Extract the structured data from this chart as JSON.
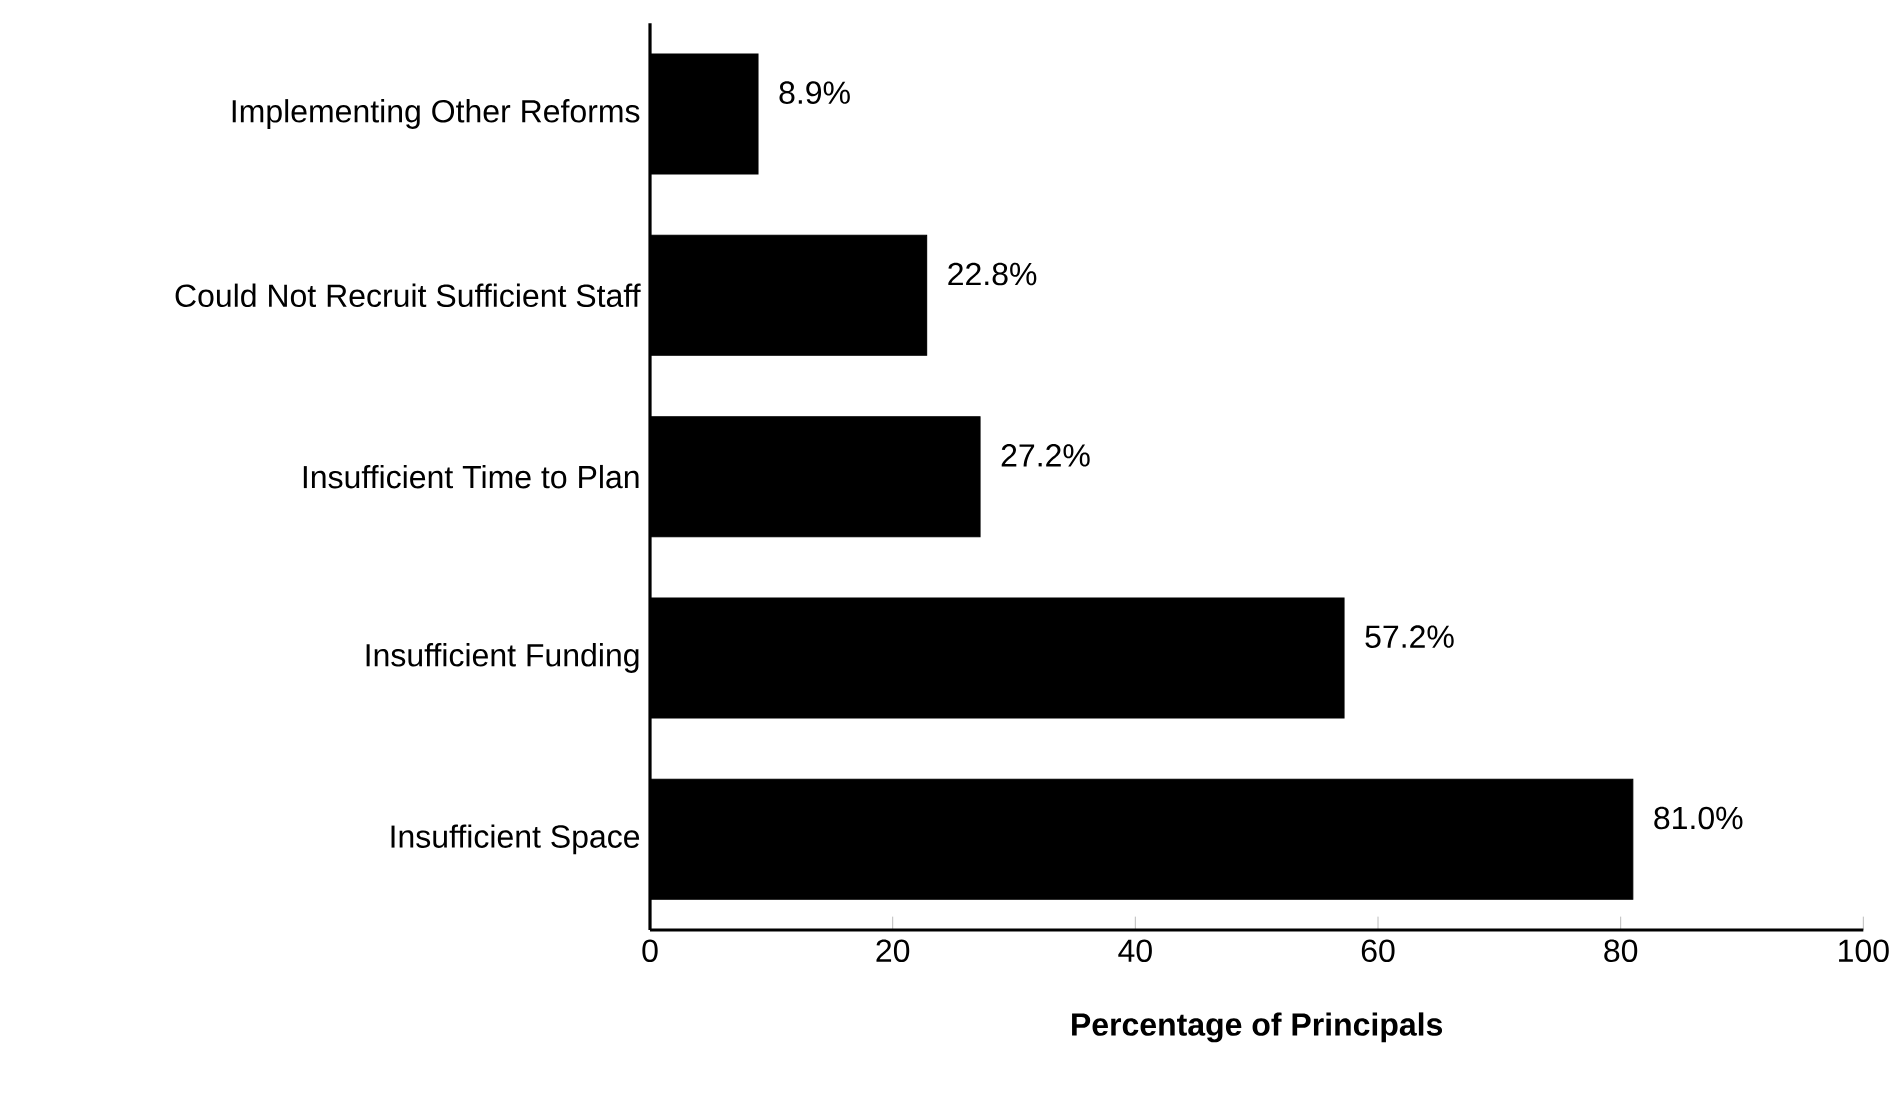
{
  "chart_data": {
    "type": "bar",
    "orientation": "horizontal",
    "categories": [
      "Implementing Other Reforms",
      "Could Not Recruit Sufficient Staff",
      "Insufficient Time to Plan",
      "Insufficient Funding",
      "Insufficient Space"
    ],
    "values": [
      8.9,
      22.8,
      27.2,
      57.2,
      81.0
    ],
    "value_labels": [
      "8.9%",
      "22.8%",
      "27.2%",
      "57.2%",
      "81.0%"
    ],
    "color": "#000000",
    "xlabel": "**Percentage of Principals**",
    "xlim": [
      0,
      100
    ],
    "xticks": [
      0,
      20,
      40,
      60,
      80,
      100
    ]
  }
}
